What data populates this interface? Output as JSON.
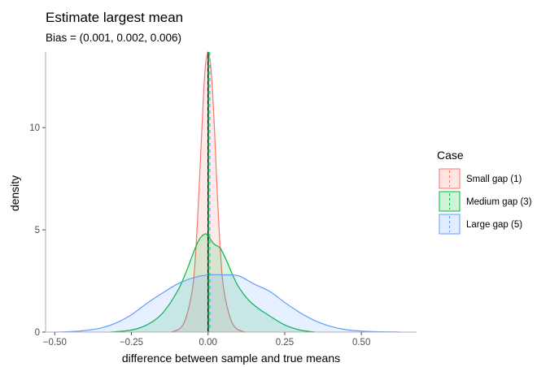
{
  "chart_data": {
    "type": "area",
    "title": "Estimate largest mean",
    "subtitle": "Bias = (0.001, 0.002, 0.006)",
    "xlabel": "difference between sample and true means",
    "ylabel": "density",
    "xlim": [
      -0.53,
      0.68
    ],
    "ylim": [
      0,
      13.7
    ],
    "x_ticks": [
      -0.5,
      -0.25,
      0.0,
      0.25,
      0.5
    ],
    "x_tick_labels": [
      "−0.50",
      "−0.25",
      "0.00",
      "0.25",
      "0.50"
    ],
    "y_ticks": [
      0,
      5,
      10
    ],
    "y_tick_labels": [
      "0",
      "5",
      "10"
    ],
    "grid": false,
    "legend": {
      "title": "Case",
      "position": "right"
    },
    "true_line_x": 0.0,
    "series": [
      {
        "name": "Small gap (1)",
        "color": "#F8766D",
        "bias": 0.001,
        "x": [
          -0.12,
          -0.09,
          -0.07,
          -0.05,
          -0.04,
          -0.03,
          -0.02,
          -0.01,
          0.0,
          0.01,
          0.02,
          0.03,
          0.04,
          0.05,
          0.07,
          0.09,
          0.12
        ],
        "y": [
          0,
          0.2,
          0.8,
          2.2,
          4.0,
          6.8,
          10.0,
          12.8,
          13.7,
          12.8,
          10.2,
          6.8,
          4.0,
          2.2,
          0.8,
          0.2,
          0
        ]
      },
      {
        "name": "Medium gap (3)",
        "color": "#00BA38",
        "bias": 0.002,
        "x": [
          -0.32,
          -0.25,
          -0.2,
          -0.15,
          -0.1,
          -0.07,
          -0.05,
          -0.03,
          -0.01,
          0.0,
          0.02,
          0.04,
          0.06,
          0.08,
          0.1,
          0.13,
          0.16,
          0.2,
          0.25,
          0.3,
          0.35
        ],
        "y": [
          0,
          0.1,
          0.35,
          0.9,
          2.0,
          3.0,
          3.8,
          4.5,
          4.8,
          4.7,
          4.3,
          4.1,
          3.5,
          2.8,
          2.2,
          1.6,
          1.2,
          0.8,
          0.35,
          0.1,
          0
        ]
      },
      {
        "name": "Large gap (5)",
        "color": "#619CFF",
        "bias": 0.006,
        "x": [
          -0.5,
          -0.45,
          -0.4,
          -0.35,
          -0.3,
          -0.25,
          -0.2,
          -0.15,
          -0.1,
          -0.05,
          0.0,
          0.05,
          0.1,
          0.15,
          0.2,
          0.25,
          0.3,
          0.35,
          0.4,
          0.45,
          0.5,
          0.55,
          0.6,
          0.63
        ],
        "y": [
          0,
          0.02,
          0.08,
          0.2,
          0.45,
          0.85,
          1.4,
          1.9,
          2.35,
          2.65,
          2.8,
          2.8,
          2.75,
          2.35,
          2.0,
          1.45,
          0.95,
          0.55,
          0.28,
          0.12,
          0.05,
          0.02,
          0.01,
          0
        ]
      }
    ]
  }
}
